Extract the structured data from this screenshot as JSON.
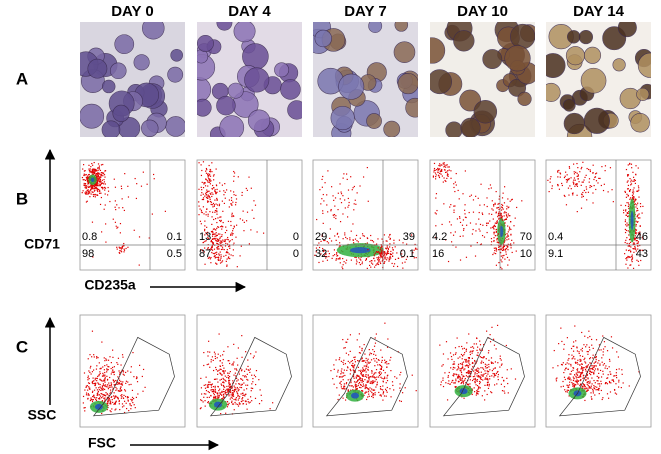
{
  "columns": [
    "DAY 0",
    "DAY 4",
    "DAY 7",
    "DAY 10",
    "DAY 14"
  ],
  "rows": [
    "A",
    "B",
    "C"
  ],
  "quadrants": [
    {
      "ul": 0.8,
      "ur": 0.1,
      "ll": 98,
      "lr": 0.5
    },
    {
      "ul": 13,
      "ur": 0,
      "ll": 87,
      "lr": 0
    },
    {
      "ul": 29,
      "ur": 39,
      "ll": 32,
      "lr": 0.1
    },
    {
      "ul": 4.2,
      "ur": 70,
      "ll": 16,
      "lr": 10
    },
    {
      "ul": 0.4,
      "ur": 46,
      "ll": 9.1,
      "lr": 43
    }
  ],
  "axes": {
    "b_y": "CD71",
    "b_x": "CD235a",
    "c_y": "SSC",
    "c_x": "FSC"
  }
}
